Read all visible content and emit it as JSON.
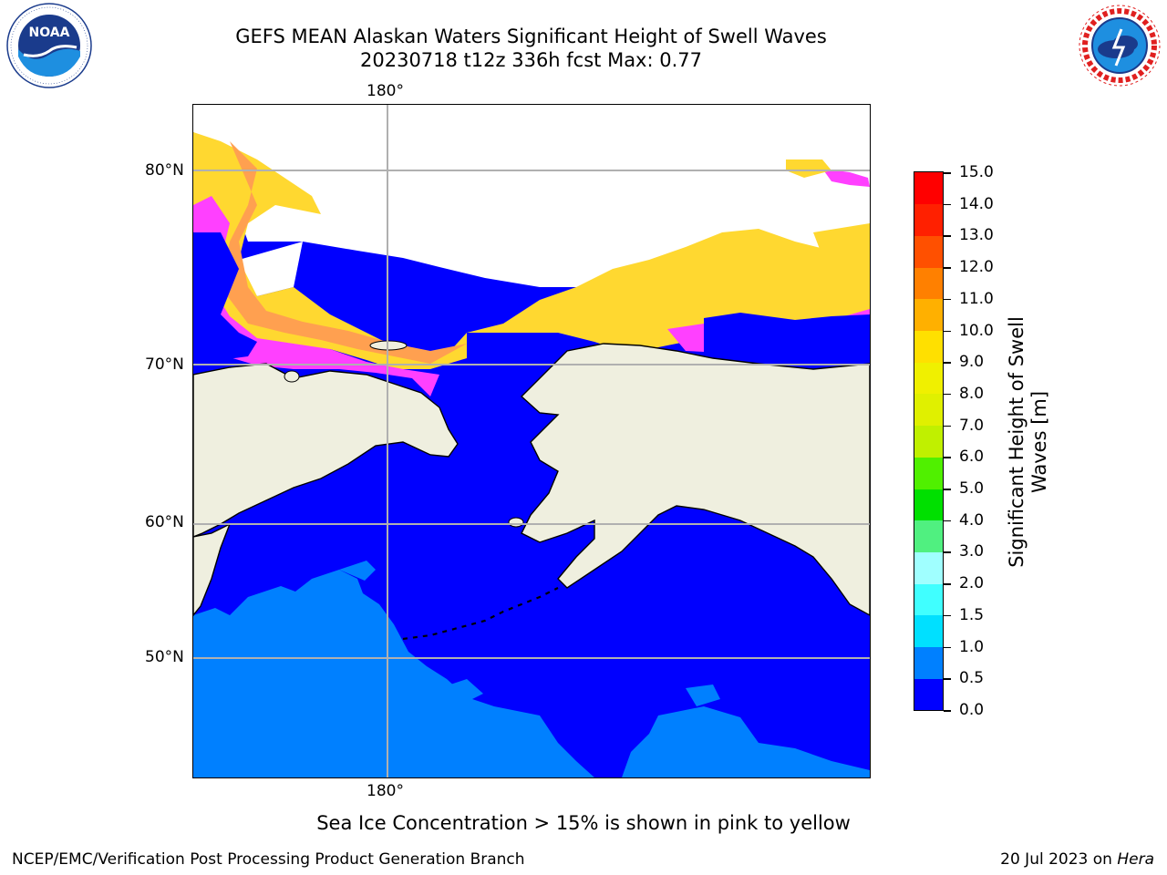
{
  "header": {
    "title_line1": "GEFS MEAN Alaskan Waters Significant Height of Swell Waves",
    "title_line2": "20230718 t12z 336h fcst   Max: 0.77"
  },
  "logos": {
    "left": {
      "text": "NOAA",
      "ring_text": "NATIONAL OCEANIC AND ATMOSPHERIC ADMINISTRATION · U.S. DEPARTMENT OF COMMERCE"
    },
    "right": {
      "ring_text": "NATIONAL WEATHER SERVICE"
    }
  },
  "map": {
    "lon_labels": {
      "top": "180°",
      "bottom": "180°"
    },
    "lat_labels": {
      "l80": "80°N",
      "l70": "70°N",
      "l60": "60°N",
      "l50": "50°N"
    },
    "colors": {
      "ocean": "#0000ff",
      "swell_low": "#0080ff",
      "land": "#efefdf",
      "ice_pink": "#ff40ff",
      "ice_orange": "#ffa050",
      "ice_yellow": "#ffd830",
      "ice_free_white": "#ffffff",
      "grid": "#b0b0b0"
    }
  },
  "colorbar": {
    "title": "Significant Height of Swell Waves [m]",
    "title_line1": "Significant Height of Swell",
    "title_line2": "Waves [m]",
    "ticks": [
      "0.0",
      "0.5",
      "1.0",
      "1.5",
      "2.0",
      "3.0",
      "4.0",
      "5.0",
      "6.0",
      "7.0",
      "8.0",
      "9.0",
      "10.0",
      "11.0",
      "12.0",
      "13.0",
      "14.0",
      "15.0"
    ],
    "colors": [
      "#0000ff",
      "#0080ff",
      "#00e0ff",
      "#40ffff",
      "#a0ffff",
      "#50f080",
      "#00e000",
      "#50f000",
      "#c0f000",
      "#e0f000",
      "#f0f000",
      "#ffe000",
      "#ffb000",
      "#ff8000",
      "#ff5000",
      "#ff2000",
      "#ff0000"
    ]
  },
  "caption": "Sea Ice Concentration > 15% is shown in pink to yellow",
  "footer": {
    "left": "NCEP/EMC/Verification Post Processing Product Generation Branch",
    "right_date": "20 Jul 2023 on ",
    "right_host": "Hera"
  }
}
